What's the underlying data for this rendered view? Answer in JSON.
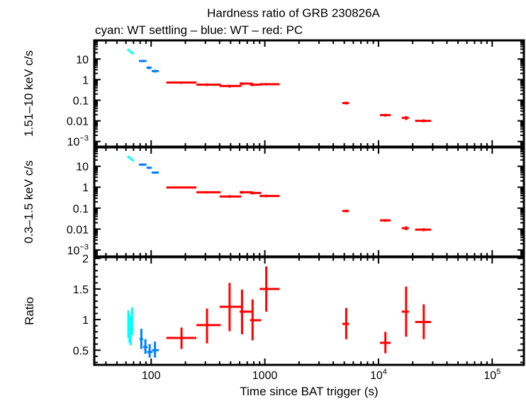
{
  "chart_data": {
    "type": "scatter",
    "title": "Hardness ratio of GRB 230826A",
    "subtitle": "cyan: WT settling – blue: WT – red: PC",
    "xlabel": "Time since BAT trigger (s)",
    "xscale": "log",
    "xlim": [
      31.6,
      190000
    ],
    "x_ticks": [
      {
        "value": 100,
        "label": "100"
      },
      {
        "value": 1000,
        "label": "1000"
      },
      {
        "value": 10000,
        "label": "10",
        "exp": "4"
      },
      {
        "value": 100000,
        "label": "10",
        "exp": "5"
      }
    ],
    "colors": {
      "WT settling": "#00ffff",
      "WT": "#0080ff",
      "PC": "#ff0000"
    },
    "panels": [
      {
        "name": "hard",
        "ylabel": "1.51–10 keV c/s",
        "yscale": "log",
        "ylim": [
          0.00056,
          80
        ],
        "y_ticks": [
          {
            "value": 10,
            "label": "10"
          },
          {
            "value": 1,
            "label": "1"
          },
          {
            "value": 0.1,
            "label": "0.1"
          },
          {
            "value": 0.01,
            "label": "0.01"
          },
          {
            "value": 0.001,
            "label": "10",
            "exp": "−3"
          }
        ],
        "series": [
          {
            "name": "WT settling",
            "points": [
              {
                "x": 63,
                "xlo": 62,
                "xhi": 64,
                "y": 28,
                "ylo": 25,
                "yhi": 31
              },
              {
                "x": 65,
                "xlo": 64,
                "xhi": 66,
                "y": 24,
                "ylo": 21,
                "yhi": 27
              },
              {
                "x": 67,
                "xlo": 66,
                "xhi": 68,
                "y": 21,
                "ylo": 18.5,
                "yhi": 23.5
              },
              {
                "x": 69,
                "xlo": 68,
                "xhi": 70.5,
                "y": 19,
                "ylo": 17,
                "yhi": 21
              }
            ]
          },
          {
            "name": "WT",
            "points": [
              {
                "x": 84,
                "xlo": 78,
                "xhi": 91,
                "y": 8,
                "ylo": 7,
                "yhi": 9
              },
              {
                "x": 96,
                "xlo": 91,
                "xhi": 101,
                "y": 3.8,
                "ylo": 3.2,
                "yhi": 4.4
              },
              {
                "x": 108,
                "xlo": 101,
                "xhi": 117,
                "y": 2.6,
                "ylo": 2.2,
                "yhi": 3.0
              }
            ]
          },
          {
            "name": "PC",
            "points": [
              {
                "x": 185,
                "xlo": 136,
                "xhi": 250,
                "y": 0.72,
                "ylo": 0.62,
                "yhi": 0.82
              },
              {
                "x": 310,
                "xlo": 250,
                "xhi": 410,
                "y": 0.57,
                "ylo": 0.49,
                "yhi": 0.66
              },
              {
                "x": 490,
                "xlo": 400,
                "xhi": 620,
                "y": 0.49,
                "ylo": 0.41,
                "yhi": 0.57
              },
              {
                "x": 630,
                "xlo": 600,
                "xhi": 780,
                "y": 0.64,
                "ylo": 0.54,
                "yhi": 0.74
              },
              {
                "x": 780,
                "xlo": 740,
                "xhi": 930,
                "y": 0.57,
                "ylo": 0.48,
                "yhi": 0.66
              },
              {
                "x": 1030,
                "xlo": 900,
                "xhi": 1350,
                "y": 0.6,
                "ylo": 0.52,
                "yhi": 0.68
              },
              {
                "x": 5200,
                "xlo": 4800,
                "xhi": 5500,
                "y": 0.073,
                "ylo": 0.062,
                "yhi": 0.085
              },
              {
                "x": 11500,
                "xlo": 10300,
                "xhi": 12800,
                "y": 0.019,
                "ylo": 0.016,
                "yhi": 0.022
              },
              {
                "x": 17500,
                "xlo": 16000,
                "xhi": 18500,
                "y": 0.014,
                "ylo": 0.011,
                "yhi": 0.017
              },
              {
                "x": 25000,
                "xlo": 21000,
                "xhi": 29000,
                "y": 0.01,
                "ylo": 0.0085,
                "yhi": 0.0118
              }
            ]
          }
        ]
      },
      {
        "name": "soft",
        "ylabel": "0.3–1.5 keV c/s",
        "yscale": "log",
        "ylim": [
          0.00049,
          80
        ],
        "y_ticks": [
          {
            "value": 10,
            "label": "10"
          },
          {
            "value": 1,
            "label": "1"
          },
          {
            "value": 0.1,
            "label": "0.1"
          },
          {
            "value": 0.01,
            "label": "0.01"
          },
          {
            "value": 0.001,
            "label": "10",
            "exp": "−3"
          }
        ],
        "series": [
          {
            "name": "WT settling",
            "points": [
              {
                "x": 63,
                "xlo": 62,
                "xhi": 64,
                "y": 28,
                "ylo": 25,
                "yhi": 31
              },
              {
                "x": 65,
                "xlo": 64,
                "xhi": 66,
                "y": 25,
                "ylo": 22,
                "yhi": 28
              },
              {
                "x": 67,
                "xlo": 66,
                "xhi": 68,
                "y": 22,
                "ylo": 19.5,
                "yhi": 24.5
              },
              {
                "x": 69,
                "xlo": 68,
                "xhi": 70.5,
                "y": 19,
                "ylo": 17,
                "yhi": 21
              }
            ]
          },
          {
            "name": "WT",
            "points": [
              {
                "x": 84,
                "xlo": 78,
                "xhi": 91,
                "y": 12,
                "ylo": 10.5,
                "yhi": 13.5
              },
              {
                "x": 96,
                "xlo": 91,
                "xhi": 101,
                "y": 8.5,
                "ylo": 7.5,
                "yhi": 9.5
              },
              {
                "x": 108,
                "xlo": 101,
                "xhi": 117,
                "y": 5,
                "ylo": 4.4,
                "yhi": 5.6
              }
            ]
          },
          {
            "name": "PC",
            "points": [
              {
                "x": 185,
                "xlo": 136,
                "xhi": 250,
                "y": 0.97,
                "ylo": 0.87,
                "yhi": 1.08
              },
              {
                "x": 310,
                "xlo": 250,
                "xhi": 410,
                "y": 0.57,
                "ylo": 0.5,
                "yhi": 0.65
              },
              {
                "x": 490,
                "xlo": 400,
                "xhi": 620,
                "y": 0.36,
                "ylo": 0.31,
                "yhi": 0.42
              },
              {
                "x": 630,
                "xlo": 600,
                "xhi": 780,
                "y": 0.57,
                "ylo": 0.49,
                "yhi": 0.66
              },
              {
                "x": 780,
                "xlo": 740,
                "xhi": 930,
                "y": 0.53,
                "ylo": 0.45,
                "yhi": 0.62
              },
              {
                "x": 1030,
                "xlo": 900,
                "xhi": 1350,
                "y": 0.38,
                "ylo": 0.33,
                "yhi": 0.44
              },
              {
                "x": 5200,
                "xlo": 4800,
                "xhi": 5500,
                "y": 0.073,
                "ylo": 0.063,
                "yhi": 0.084
              },
              {
                "x": 11500,
                "xlo": 10300,
                "xhi": 12800,
                "y": 0.026,
                "ylo": 0.022,
                "yhi": 0.03
              },
              {
                "x": 17500,
                "xlo": 16000,
                "xhi": 18500,
                "y": 0.011,
                "ylo": 0.0088,
                "yhi": 0.0135
              },
              {
                "x": 25000,
                "xlo": 21000,
                "xhi": 29000,
                "y": 0.0094,
                "ylo": 0.0079,
                "yhi": 0.011
              }
            ]
          }
        ]
      },
      {
        "name": "ratio",
        "ylabel": "Ratio",
        "yscale": "linear",
        "ylim": [
          0.26,
          2.02
        ],
        "y_ticks": [
          {
            "value": 2,
            "label": "2"
          },
          {
            "value": 1.5,
            "label": "1.5"
          },
          {
            "value": 1,
            "label": "1"
          },
          {
            "value": 0.5,
            "label": "0.5"
          }
        ],
        "y_minor_step": 0.1,
        "series": [
          {
            "name": "WT settling",
            "points": [
              {
                "x": 63,
                "xlo": 62,
                "xhi": 64,
                "y": 0.93,
                "ylo": 0.7,
                "yhi": 1.15
              },
              {
                "x": 64.5,
                "xlo": 64,
                "xhi": 65.5,
                "y": 0.8,
                "ylo": 0.62,
                "yhi": 1.1
              },
              {
                "x": 66,
                "xlo": 65.5,
                "xhi": 67,
                "y": 0.85,
                "ylo": 0.58,
                "yhi": 1.05
              },
              {
                "x": 68,
                "xlo": 67,
                "xhi": 69,
                "y": 0.95,
                "ylo": 0.75,
                "yhi": 1.2
              }
            ]
          },
          {
            "name": "WT",
            "points": [
              {
                "x": 82,
                "xlo": 79,
                "xhi": 85,
                "y": 0.68,
                "ylo": 0.52,
                "yhi": 0.85
              },
              {
                "x": 89,
                "xlo": 85,
                "xhi": 93,
                "y": 0.55,
                "ylo": 0.44,
                "yhi": 0.68
              },
              {
                "x": 97,
                "xlo": 92,
                "xhi": 103,
                "y": 0.47,
                "ylo": 0.38,
                "yhi": 0.6
              },
              {
                "x": 108,
                "xlo": 102,
                "xhi": 117,
                "y": 0.5,
                "ylo": 0.38,
                "yhi": 0.64
              }
            ]
          },
          {
            "name": "PC",
            "points": [
              {
                "x": 185,
                "xlo": 136,
                "xhi": 250,
                "y": 0.7,
                "ylo": 0.52,
                "yhi": 0.87
              },
              {
                "x": 310,
                "xlo": 250,
                "xhi": 410,
                "y": 0.91,
                "ylo": 0.61,
                "yhi": 1.18
              },
              {
                "x": 490,
                "xlo": 400,
                "xhi": 620,
                "y": 1.21,
                "ylo": 0.81,
                "yhi": 1.6
              },
              {
                "x": 630,
                "xlo": 600,
                "xhi": 780,
                "y": 1.13,
                "ylo": 0.76,
                "yhi": 1.49
              },
              {
                "x": 780,
                "xlo": 740,
                "xhi": 930,
                "y": 0.99,
                "ylo": 0.66,
                "yhi": 1.33
              },
              {
                "x": 1030,
                "xlo": 900,
                "xhi": 1350,
                "y": 1.5,
                "ylo": 1.13,
                "yhi": 1.87
              },
              {
                "x": 5200,
                "xlo": 4800,
                "xhi": 5500,
                "y": 0.93,
                "ylo": 0.68,
                "yhi": 1.19
              },
              {
                "x": 11500,
                "xlo": 10300,
                "xhi": 12800,
                "y": 0.62,
                "ylo": 0.45,
                "yhi": 0.8
              },
              {
                "x": 17500,
                "xlo": 16000,
                "xhi": 18500,
                "y": 1.13,
                "ylo": 0.72,
                "yhi": 1.54
              },
              {
                "x": 25000,
                "xlo": 21000,
                "xhi": 29000,
                "y": 0.96,
                "ylo": 0.68,
                "yhi": 1.25
              }
            ]
          }
        ]
      }
    ]
  }
}
